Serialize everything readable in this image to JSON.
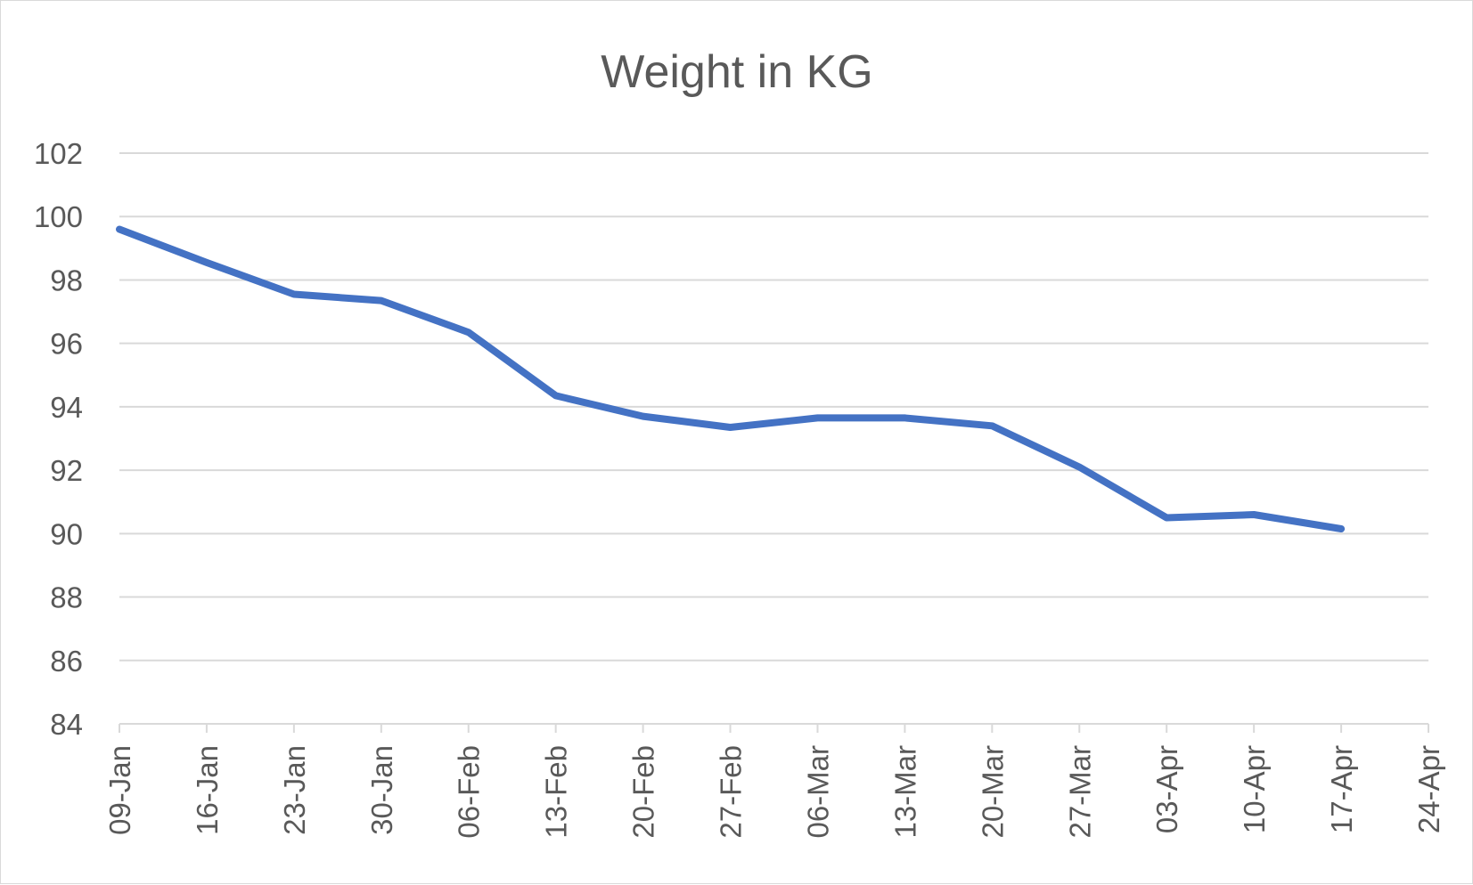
{
  "chart_data": {
    "type": "line",
    "title": "Weight in KG",
    "xlabel": "",
    "ylabel": "",
    "x": [
      "09-Jan",
      "16-Jan",
      "23-Jan",
      "30-Jan",
      "06-Feb",
      "13-Feb",
      "20-Feb",
      "27-Feb",
      "06-Mar",
      "13-Mar",
      "20-Mar",
      "27-Mar",
      "03-Apr",
      "10-Apr",
      "17-Apr"
    ],
    "x_ticks": [
      "09-Jan",
      "16-Jan",
      "23-Jan",
      "30-Jan",
      "06-Feb",
      "13-Feb",
      "20-Feb",
      "27-Feb",
      "06-Mar",
      "13-Mar",
      "20-Mar",
      "27-Mar",
      "03-Apr",
      "10-Apr",
      "17-Apr",
      "24-Apr"
    ],
    "y_ticks": [
      84,
      86,
      88,
      90,
      92,
      94,
      96,
      98,
      100,
      102
    ],
    "ylim": [
      84,
      102
    ],
    "series": [
      {
        "values": [
          99.6,
          98.55,
          97.55,
          97.35,
          96.35,
          94.35,
          93.7,
          93.35,
          93.65,
          93.65,
          93.4,
          92.1,
          90.5,
          90.6,
          90.15
        ],
        "color": "#4472c4"
      }
    ],
    "grid": true,
    "legend": "none"
  }
}
